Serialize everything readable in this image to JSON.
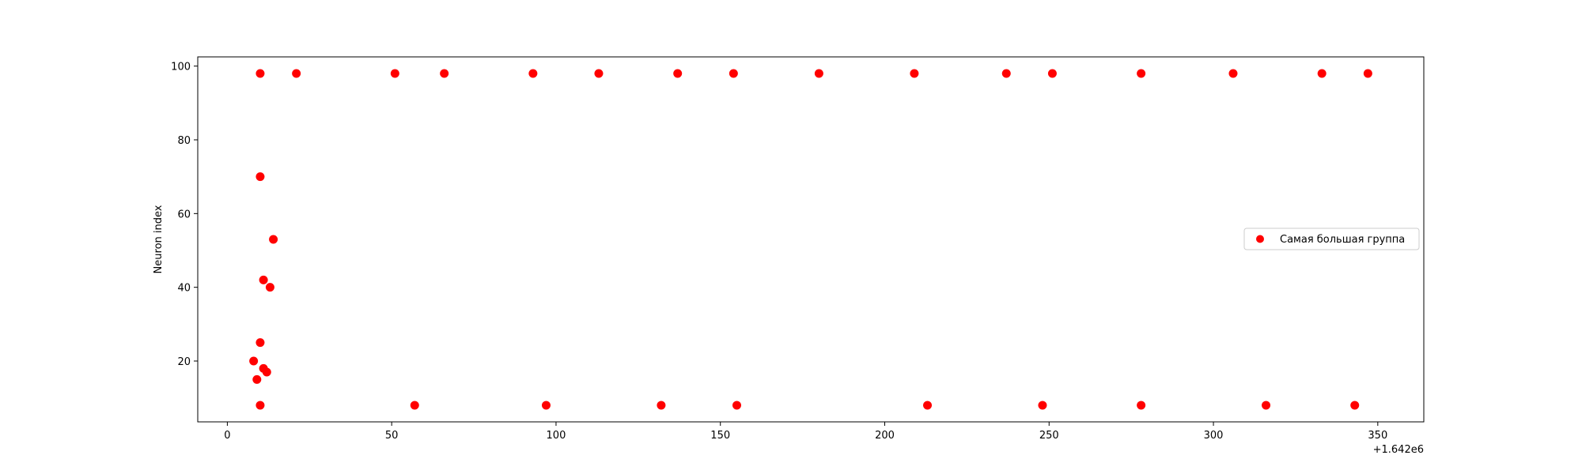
{
  "chart_data": {
    "type": "scatter",
    "title": "",
    "xlabel": "",
    "ylabel": "Neuron index",
    "x_offset_label": "+1.642e6",
    "xlim": [
      1641991,
      1642364
    ],
    "ylim": [
      3.5,
      102.5
    ],
    "xticks": [
      0,
      50,
      100,
      150,
      200,
      250,
      300,
      350
    ],
    "yticks": [
      20,
      40,
      60,
      80,
      100
    ],
    "grid": false,
    "legend_position": "center-right",
    "marker_color": "#ff0000",
    "series": [
      {
        "name": "Самая большая группа",
        "points": [
          [
            1642010,
            98
          ],
          [
            1642021,
            98
          ],
          [
            1642051,
            98
          ],
          [
            1642066,
            98
          ],
          [
            1642093,
            98
          ],
          [
            1642113,
            98
          ],
          [
            1642137,
            98
          ],
          [
            1642154,
            98
          ],
          [
            1642180,
            98
          ],
          [
            1642209,
            98
          ],
          [
            1642237,
            98
          ],
          [
            1642251,
            98
          ],
          [
            1642278,
            98
          ],
          [
            1642306,
            98
          ],
          [
            1642333,
            98
          ],
          [
            1642347,
            98
          ],
          [
            1642010,
            70
          ],
          [
            1642014,
            53
          ],
          [
            1642011,
            42
          ],
          [
            1642013,
            40
          ],
          [
            1642010,
            25
          ],
          [
            1642008,
            20
          ],
          [
            1642011,
            18
          ],
          [
            1642012,
            17
          ],
          [
            1642009,
            15
          ],
          [
            1642010,
            8
          ],
          [
            1642057,
            8
          ],
          [
            1642097,
            8
          ],
          [
            1642132,
            8
          ],
          [
            1642155,
            8
          ],
          [
            1642213,
            8
          ],
          [
            1642248,
            8
          ],
          [
            1642278,
            8
          ],
          [
            1642316,
            8
          ],
          [
            1642343,
            8
          ]
        ]
      }
    ]
  }
}
